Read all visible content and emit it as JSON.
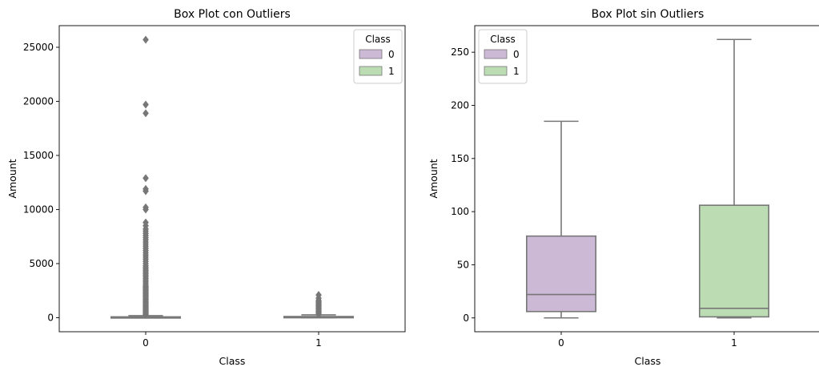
{
  "chart_data": [
    {
      "type": "box",
      "title": "Box Plot con Outliers",
      "xlabel": "Class",
      "ylabel": "Amount",
      "categories": [
        "0",
        "1"
      ],
      "ylim": [
        -1300,
        27000
      ],
      "yticks": [
        0,
        5000,
        10000,
        15000,
        20000,
        25000
      ],
      "legend": {
        "title": "Class",
        "position": "top-right",
        "entries": [
          "0",
          "1"
        ]
      },
      "box_colors": [
        "#cbb9d6",
        "#bcddb4"
      ],
      "edge_color": "#777777",
      "boxes": [
        {
          "category": "0",
          "q1": 6,
          "median": 22,
          "q3": 77,
          "whisker_low": 0,
          "whisker_high": 185,
          "outliers": [
            250,
            320,
            400,
            480,
            560,
            650,
            740,
            830,
            920,
            1000,
            1100,
            1200,
            1300,
            1400,
            1500,
            1600,
            1700,
            1800,
            1900,
            2000,
            2100,
            2200,
            2300,
            2400,
            2500,
            2600,
            2700,
            2800,
            2900,
            3000,
            3150,
            3300,
            3450,
            3600,
            3750,
            3900,
            4050,
            4200,
            4350,
            4500,
            4650,
            4800,
            5000,
            5200,
            5400,
            5600,
            5800,
            6000,
            6200,
            6400,
            6600,
            6800,
            7000,
            7200,
            7400,
            7600,
            7800,
            8000,
            8200,
            8500,
            8800,
            10000,
            10200,
            11700,
            11900,
            12900,
            18900,
            19700,
            25700
          ]
        },
        {
          "category": "1",
          "q1": 1,
          "median": 9,
          "q3": 106,
          "whisker_low": 0,
          "whisker_high": 262,
          "outliers": [
            300,
            400,
            500,
            600,
            700,
            800,
            900,
            1000,
            1100,
            1200,
            1300,
            1400,
            1500,
            1600,
            1800,
            2100
          ]
        }
      ]
    },
    {
      "type": "box",
      "title": "Box Plot sin Outliers",
      "xlabel": "Class",
      "ylabel": "Amount",
      "categories": [
        "0",
        "1"
      ],
      "ylim": [
        -13,
        275
      ],
      "yticks": [
        0,
        50,
        100,
        150,
        200,
        250
      ],
      "legend": {
        "title": "Class",
        "position": "top-left",
        "entries": [
          "0",
          "1"
        ]
      },
      "box_colors": [
        "#cbb9d6",
        "#bcddb4"
      ],
      "edge_color": "#777777",
      "boxes": [
        {
          "category": "0",
          "q1": 6,
          "median": 22,
          "q3": 77,
          "whisker_low": 0,
          "whisker_high": 185,
          "outliers": []
        },
        {
          "category": "1",
          "q1": 1,
          "median": 9,
          "q3": 106,
          "whisker_low": 0,
          "whisker_high": 262,
          "outliers": []
        }
      ]
    }
  ]
}
